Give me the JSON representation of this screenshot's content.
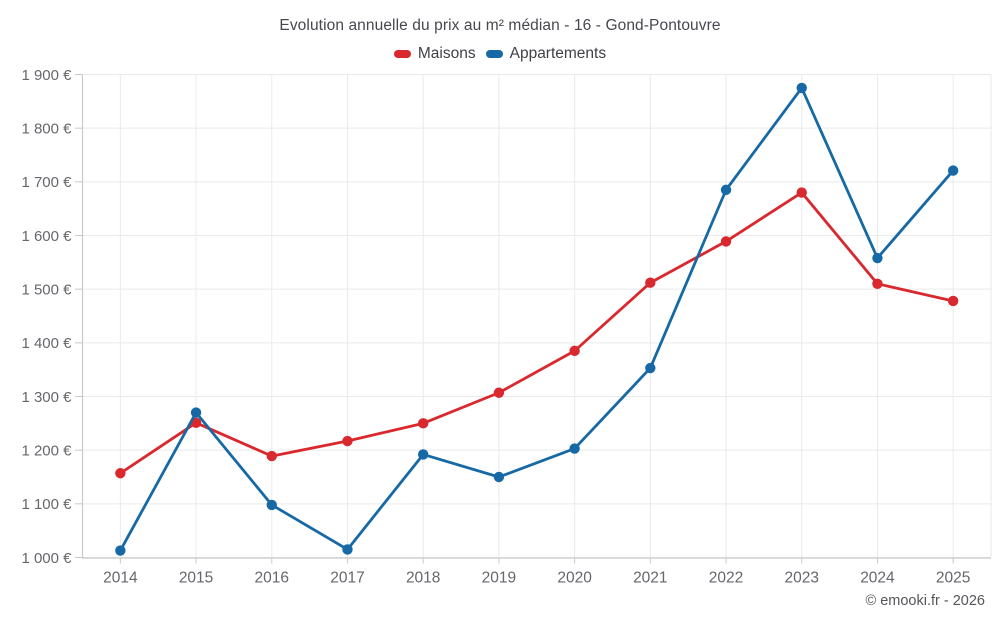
{
  "header": {
    "title": "Evolution annuelle du prix au m² médian - 16 - Gond-Pontouvre"
  },
  "legend": [
    {
      "label": "Maisons",
      "color": "#d9282e"
    },
    {
      "label": "Appartements",
      "color": "#1769a5"
    }
  ],
  "footer": {
    "credit": "© emooki.fr - 2026"
  },
  "chart_data": {
    "type": "line",
    "title": "Evolution annuelle du prix au m² médian - 16 - Gond-Pontouvre",
    "categories": [
      "2014",
      "2015",
      "2016",
      "2017",
      "2018",
      "2019",
      "2020",
      "2021",
      "2022",
      "2023",
      "2024",
      "2025"
    ],
    "series": [
      {
        "name": "Maisons",
        "color": "#d9282e",
        "values": [
          1157,
          1251,
          1189,
          1217,
          1250,
          1307,
          1385,
          1512,
          1589,
          1680,
          1510,
          1478
        ]
      },
      {
        "name": "Appartements",
        "color": "#1769a5",
        "values": [
          1013,
          1270,
          1098,
          1015,
          1192,
          1150,
          1203,
          1353,
          1685,
          1875,
          1558,
          1721
        ]
      }
    ],
    "xlabel": "",
    "ylabel": "",
    "ylim": [
      1000,
      1900
    ],
    "ytick_step": 100,
    "unit": "€",
    "grid": true,
    "legend_position": "top",
    "style": {
      "grid_color": "#eaeaea",
      "axis_color": "#c9c9c9",
      "tick_label_color": "#66666c",
      "marker_radius": 5.2,
      "line_width": 2.8
    }
  }
}
